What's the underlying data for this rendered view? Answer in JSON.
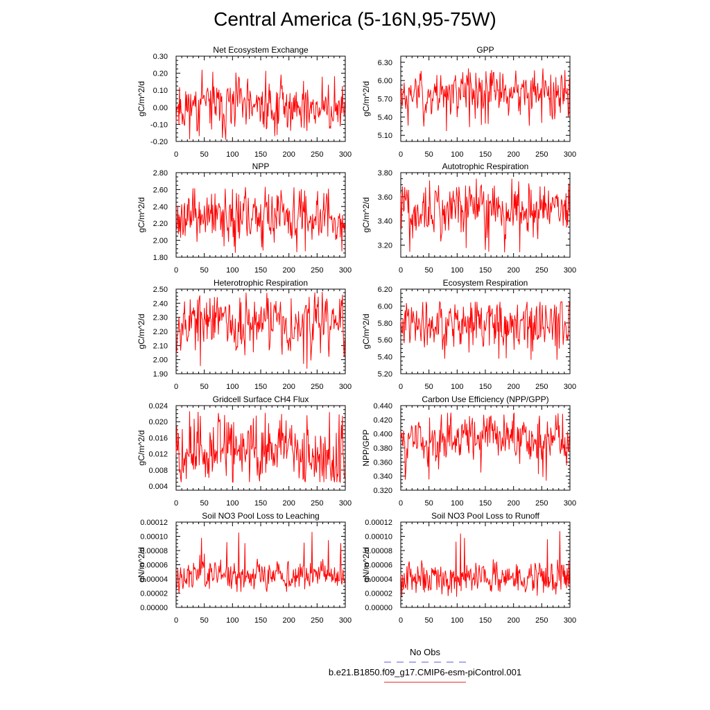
{
  "figure": {
    "title": "Central America (5-16N,95-75W)"
  },
  "legend": {
    "obs_label": "No Obs",
    "obs_color": "#5a5ad8",
    "run_label": "b.e21.B1850.f09_g17.CMIP6-esm-piControl.001",
    "run_color": "#e02020"
  },
  "chart_data": [
    {
      "type": "line",
      "title": "Net Ecosystem Exchange",
      "ylabel": "gC/m^2/d",
      "xlim": [
        0,
        300
      ],
      "xticks": [
        "0",
        "50",
        "100",
        "150",
        "200",
        "250",
        "300"
      ],
      "ylim": [
        -0.2,
        0.3
      ],
      "yticks": [
        "-0.20",
        "-0.10",
        "0.00",
        "0.10",
        "0.20",
        "0.30"
      ],
      "mean": 0.0,
      "amp": 0.065,
      "min": -0.19,
      "max": 0.24,
      "seed": 11,
      "series": [
        {
          "name": "b.e21.B1850.f09_g17.CMIP6-esm-piControl.001",
          "color": "#ff0000"
        }
      ]
    },
    {
      "type": "line",
      "title": "GPP",
      "ylabel": "gC/m^2/d",
      "xlim": [
        0,
        300
      ],
      "xticks": [
        "0",
        "50",
        "100",
        "150",
        "200",
        "250",
        "300"
      ],
      "ylim": [
        5.0,
        6.4
      ],
      "yticks": [
        "5.10",
        "5.40",
        "5.70",
        "6.00",
        "6.30"
      ],
      "yticksvals": [
        5.1,
        5.4,
        5.7,
        6.0,
        6.3
      ],
      "mean": 5.8,
      "amp": 0.16,
      "min": 5.15,
      "max": 6.2,
      "seed": 23,
      "series": [
        {
          "name": "b.e21.B1850.f09_g17.CMIP6-esm-piControl.001",
          "color": "#ff0000"
        }
      ]
    },
    {
      "type": "line",
      "title": "NPP",
      "ylabel": "gC/m^2/d",
      "xlim": [
        0,
        300
      ],
      "xticks": [
        "0",
        "50",
        "100",
        "150",
        "200",
        "250",
        "300"
      ],
      "ylim": [
        1.8,
        2.8
      ],
      "yticks": [
        "1.80",
        "2.00",
        "2.20",
        "2.40",
        "2.60",
        "2.80"
      ],
      "mean": 2.28,
      "amp": 0.13,
      "min": 1.82,
      "max": 2.65,
      "seed": 37,
      "series": [
        {
          "name": "b.e21.B1850.f09_g17.CMIP6-esm-piControl.001",
          "color": "#ff0000"
        }
      ]
    },
    {
      "type": "line",
      "title": "Autotrophic Respiration",
      "ylabel": "gC/m^2/d",
      "xlim": [
        0,
        300
      ],
      "xticks": [
        "0",
        "50",
        "100",
        "150",
        "200",
        "250",
        "300"
      ],
      "ylim": [
        3.1,
        3.8
      ],
      "yticks": [
        "3.20",
        "3.40",
        "3.60",
        "3.80"
      ],
      "yticksvals": [
        3.2,
        3.4,
        3.6,
        3.8
      ],
      "mean": 3.5,
      "amp": 0.09,
      "min": 3.12,
      "max": 3.75,
      "seed": 41,
      "series": [
        {
          "name": "b.e21.B1850.f09_g17.CMIP6-esm-piControl.001",
          "color": "#ff0000"
        }
      ]
    },
    {
      "type": "line",
      "title": "Heterotrophic Respiration",
      "ylabel": "gC/m^2/d",
      "xlim": [
        0,
        300
      ],
      "xticks": [
        "0",
        "50",
        "100",
        "150",
        "200",
        "250",
        "300"
      ],
      "ylim": [
        1.9,
        2.5
      ],
      "yticks": [
        "1.90",
        "2.00",
        "2.10",
        "2.20",
        "2.30",
        "2.40",
        "2.50"
      ],
      "mean": 2.27,
      "amp": 0.09,
      "min": 1.93,
      "max": 2.48,
      "seed": 53,
      "series": [
        {
          "name": "b.e21.B1850.f09_g17.CMIP6-esm-piControl.001",
          "color": "#ff0000"
        }
      ]
    },
    {
      "type": "line",
      "title": "Ecosystem Respiration",
      "ylabel": "gC/m^2/d",
      "xlim": [
        0,
        300
      ],
      "xticks": [
        "0",
        "50",
        "100",
        "150",
        "200",
        "250",
        "300"
      ],
      "ylim": [
        5.2,
        6.2
      ],
      "yticks": [
        "5.20",
        "5.40",
        "5.60",
        "5.80",
        "6.00",
        "6.20"
      ],
      "mean": 5.78,
      "amp": 0.13,
      "min": 5.28,
      "max": 6.05,
      "seed": 61,
      "series": [
        {
          "name": "b.e21.B1850.f09_g17.CMIP6-esm-piControl.001",
          "color": "#ff0000"
        }
      ]
    },
    {
      "type": "line",
      "title": "Gridcell Surface CH4 Flux",
      "ylabel": "gC/m^2/d",
      "xlim": [
        0,
        300
      ],
      "xticks": [
        "0",
        "50",
        "100",
        "150",
        "200",
        "250",
        "300"
      ],
      "ylim": [
        0.003,
        0.024
      ],
      "yticks": [
        "0.004",
        "0.008",
        "0.012",
        "0.016",
        "0.020",
        "0.024"
      ],
      "yticksvals": [
        0.004,
        0.008,
        0.012,
        0.016,
        0.02,
        0.024
      ],
      "mean": 0.0125,
      "amp": 0.0035,
      "min": 0.005,
      "max": 0.0235,
      "seed": 71,
      "series": [
        {
          "name": "b.e21.B1850.f09_g17.CMIP6-esm-piControl.001",
          "color": "#ff0000"
        }
      ]
    },
    {
      "type": "line",
      "title": "Carbon Use Efficiency (NPP/GPP)",
      "ylabel": "NPP/GPP",
      "xlim": [
        0,
        300
      ],
      "xticks": [
        "0",
        "50",
        "100",
        "150",
        "200",
        "250",
        "300"
      ],
      "ylim": [
        0.32,
        0.44
      ],
      "yticks": [
        "0.320",
        "0.340",
        "0.360",
        "0.380",
        "0.400",
        "0.420",
        "0.440"
      ],
      "mean": 0.394,
      "amp": 0.014,
      "min": 0.331,
      "max": 0.43,
      "seed": 83,
      "series": [
        {
          "name": "b.e21.B1850.f09_g17.CMIP6-esm-piControl.001",
          "color": "#ff0000"
        }
      ]
    },
    {
      "type": "line",
      "title": "Soil NO3 Pool Loss to Leaching",
      "ylabel": "gN/m^2/d",
      "xlim": [
        0,
        300
      ],
      "xticks": [
        "0",
        "50",
        "100",
        "150",
        "200",
        "250",
        "300"
      ],
      "ylim": [
        0,
        0.00012
      ],
      "yticks": [
        "0.00000",
        "0.00002",
        "0.00004",
        "0.00006",
        "0.00008",
        "0.00010",
        "0.00012"
      ],
      "mean": 4.5e-05,
      "amp": 9e-06,
      "min": 2e-05,
      "max": 0.000107,
      "seed": 97,
      "series": [
        {
          "name": "b.e21.B1850.f09_g17.CMIP6-esm-piControl.001",
          "color": "#ff0000"
        }
      ]
    },
    {
      "type": "line",
      "title": "Soil NO3 Pool Loss to Runoff",
      "ylabel": "gN/m^2/d",
      "xlim": [
        0,
        300
      ],
      "xticks": [
        "0",
        "50",
        "100",
        "150",
        "200",
        "250",
        "300"
      ],
      "ylim": [
        0,
        0.00012
      ],
      "yticks": [
        "0.00000",
        "0.00002",
        "0.00004",
        "0.00006",
        "0.00008",
        "0.00010",
        "0.00012"
      ],
      "mean": 4.2e-05,
      "amp": 1e-05,
      "min": 1.5e-05,
      "max": 0.000112,
      "seed": 101,
      "series": [
        {
          "name": "b.e21.B1850.f09_g17.CMIP6-esm-piControl.001",
          "color": "#ff0000"
        }
      ]
    }
  ]
}
